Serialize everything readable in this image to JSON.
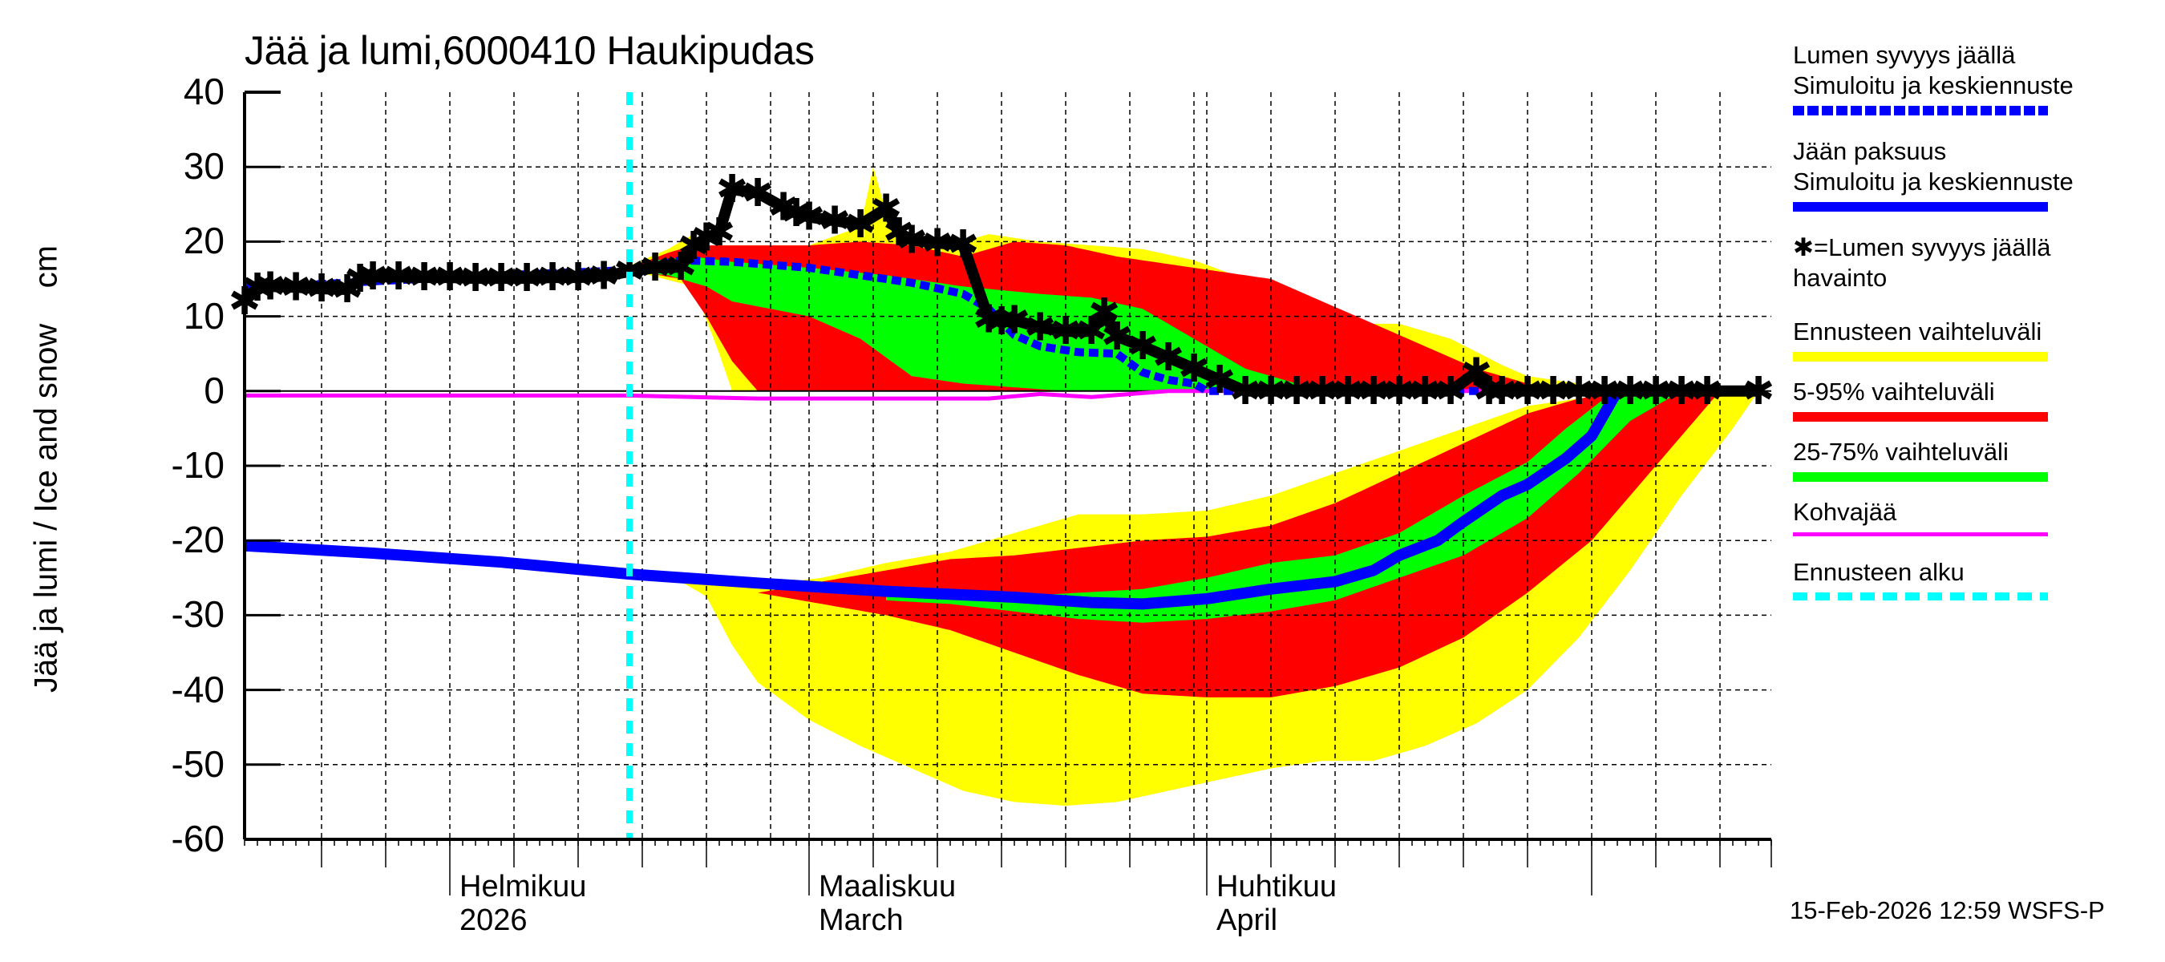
{
  "title": "Jää ja lumi,6000410 Haukipudas",
  "y_axis_label": "Jää ja lumi / Ice and snow    cm",
  "footer": "15-Feb-2026 12:59 WSFS-P",
  "x_labels": [
    {
      "line1": "Helmikuu",
      "line2": "2026",
      "date": "2026-02-01"
    },
    {
      "line1": "Maaliskuu",
      "line2": "March",
      "date": "2026-03-01"
    },
    {
      "line1": "Huhtikuu",
      "line2": "April",
      "date": "2026-04-01"
    }
  ],
  "legend": [
    {
      "line1": "Lumen syvyys jäällä",
      "line2": "Simuloitu ja keskiennuste",
      "color": "#0000ff",
      "style": "dotted-thick"
    },
    {
      "line1": "Jään paksuus",
      "line2": "Simuloitu ja keskiennuste",
      "color": "#0000ff",
      "style": "solid-thick"
    },
    {
      "line1": "✱=Lumen syvyys jäällä",
      "line2": "havainto",
      "color": "#000000",
      "style": "marker"
    },
    {
      "line1": "Ennusteen vaihteluväli",
      "color": "#ffff00",
      "style": "solid-thick"
    },
    {
      "line1": "5-95% vaihteluväli",
      "color": "#ff0000",
      "style": "solid-thick"
    },
    {
      "line1": "25-75% vaihteluväli",
      "color": "#00ff00",
      "style": "solid-thick"
    },
    {
      "line1": "Kohvajää",
      "color": "#ff00ff",
      "style": "solid-thin"
    },
    {
      "line1": "Ennusteen alku",
      "color": "#00ffff",
      "style": "dashed"
    }
  ],
  "colors": {
    "range_full": "#ffff00",
    "range_5_95": "#ff0000",
    "range_25_75": "#00ff00",
    "median": "#0000ff",
    "slush": "#ff00ff",
    "forecast_start": "#00ffff",
    "observed": "#000000"
  },
  "chart_data": {
    "type": "area",
    "title": "Jää ja lumi,6000410 Haukipudas",
    "xlabel": "",
    "ylabel": "Jää ja lumi / Ice and snow cm",
    "ylim": [
      -60,
      40
    ],
    "yticks": [
      40,
      30,
      20,
      10,
      0,
      -10,
      -20,
      -30,
      -40,
      -50,
      -60
    ],
    "x_start": "2026-01-16",
    "x_end": "2026-05-15",
    "grid": true,
    "forecast_start": "2026-02-15",
    "legend_position": "right",
    "x_days_note": "x = days since 2026-01-16 (0 = Jan 16, 16 = Feb 1, 30 = Feb 15, 44 = Mar 1, 75 = Apr 1, 105 = May 1)",
    "snow_observed": {
      "name": "Lumen syvyys jäällä havainto",
      "x": [
        0,
        1,
        2,
        4,
        6,
        8,
        9,
        10,
        12,
        14,
        16,
        18,
        20,
        22,
        24,
        26,
        28,
        30,
        32,
        34,
        35,
        36,
        37,
        38,
        40,
        42,
        43,
        44,
        46,
        48,
        50,
        51,
        52,
        54,
        56,
        58,
        59,
        60,
        62,
        64,
        66,
        67,
        68,
        70,
        72,
        74,
        76,
        78,
        80,
        82,
        84,
        86,
        88,
        90,
        92,
        94,
        96,
        97,
        98,
        100,
        102,
        104,
        106,
        108,
        110,
        112,
        114,
        118
      ],
      "y": [
        12,
        13.8,
        14,
        13.9,
        13.7,
        13.6,
        15,
        15.3,
        15.3,
        15.2,
        15.2,
        15.1,
        15.1,
        15.1,
        15.2,
        15.2,
        15.4,
        16,
        16.5,
        16.6,
        19.4,
        20.5,
        21.2,
        27,
        26.5,
        24.6,
        23.8,
        23.3,
        22.8,
        22.3,
        24.4,
        21.2,
        20.2,
        19.8,
        19.6,
        9.6,
        9.3,
        9.5,
        8.5,
        8,
        8,
        10.5,
        7.3,
        6,
        4.5,
        3,
        1.5,
        0,
        0,
        0,
        0,
        0,
        0,
        0,
        0,
        0,
        2.5,
        0,
        0,
        0,
        0,
        0,
        0,
        0,
        0,
        0,
        0,
        0
      ]
    },
    "snow_median": {
      "name": "Lumen syvyys jäällä – Simuloitu ja keskiennuste",
      "x": [
        0,
        16,
        30,
        34,
        38,
        44,
        48,
        52,
        56,
        58,
        60,
        62,
        65,
        68,
        70,
        72,
        74,
        75,
        80,
        118
      ],
      "y": [
        13.8,
        15.2,
        16.2,
        17.5,
        17.3,
        16.5,
        15.5,
        14.5,
        13,
        11,
        7.5,
        6,
        5.2,
        5,
        2.5,
        1.5,
        1,
        0,
        0,
        0
      ]
    },
    "snow_p75_upper": {
      "x": [
        30,
        32,
        35,
        38,
        44,
        50,
        56,
        62,
        66,
        70,
        74,
        78,
        82,
        85,
        90
      ],
      "y": [
        16.2,
        17.5,
        18,
        17.3,
        16.5,
        15.5,
        14,
        13,
        12.5,
        11,
        7,
        3,
        1,
        0,
        0
      ]
    },
    "snow_p25_lower": {
      "x": [
        30,
        33,
        36,
        38,
        44,
        48,
        52,
        56,
        60,
        64,
        68,
        72,
        76,
        80
      ],
      "y": [
        16,
        15.5,
        14,
        12,
        10,
        7,
        2,
        1,
        0.5,
        0,
        0,
        0,
        0,
        0
      ]
    },
    "snow_p95_upper": {
      "x": [
        30,
        33,
        35,
        38,
        44,
        48,
        52,
        56,
        60,
        64,
        68,
        72,
        76,
        80,
        84,
        88,
        92,
        96,
        100,
        104
      ],
      "y": [
        16.5,
        18.5,
        19.5,
        19.5,
        19.5,
        20,
        19.5,
        18,
        20,
        19.5,
        18,
        17,
        16,
        15,
        12,
        9,
        6,
        3,
        1,
        0
      ]
    },
    "snow_p5_lower": {
      "x": [
        30,
        34,
        36,
        38,
        40,
        44,
        48,
        52,
        56,
        60
      ],
      "y": [
        16.2,
        15,
        10,
        4,
        0,
        0,
        0,
        0,
        0,
        0
      ]
    },
    "snow_range_upper": {
      "x": [
        30,
        33,
        35,
        36,
        38,
        44,
        48,
        49,
        50,
        52,
        56,
        58,
        62,
        66,
        70,
        74,
        78,
        82,
        84,
        86,
        90,
        94,
        98,
        100,
        104,
        108
      ],
      "y": [
        16.8,
        19,
        21,
        19.5,
        19.5,
        19.5,
        22,
        30,
        24,
        20,
        20,
        21,
        20,
        19.5,
        19,
        17.5,
        15,
        11.5,
        12,
        9,
        9,
        7,
        3.5,
        2,
        1,
        0
      ]
    },
    "snow_range_lower": {
      "x": [
        30,
        35,
        37,
        38,
        40
      ],
      "y": [
        16.2,
        14,
        5,
        0,
        0
      ]
    },
    "ice_median": {
      "name": "Jään paksuus – Simuloitu ja keskiennuste",
      "x": [
        0,
        10,
        20,
        30,
        40,
        50,
        60,
        66,
        70,
        75,
        80,
        85,
        88,
        90,
        93,
        95,
        98,
        100,
        103,
        105,
        107
      ],
      "y": [
        -20.7,
        -21.7,
        -22.9,
        -24.5,
        -25.7,
        -26.8,
        -27.6,
        -28.3,
        -28.5,
        -27.8,
        -26.5,
        -25.5,
        -24,
        -22,
        -20,
        -17.5,
        -14,
        -12.5,
        -9,
        -6,
        0
      ]
    },
    "ice_p75_upper": {
      "x": [
        50,
        55,
        60,
        65,
        70,
        75,
        80,
        85,
        90,
        95,
        100,
        103,
        106,
        108
      ],
      "y": [
        -27,
        -27.2,
        -27.5,
        -27,
        -26.5,
        -25,
        -23,
        -22,
        -19,
        -14,
        -9.5,
        -5,
        -1,
        0
      ]
    },
    "ice_p25_lower": {
      "x": [
        50,
        55,
        60,
        65,
        70,
        75,
        80,
        85,
        90,
        95,
        100,
        104,
        108,
        112
      ],
      "y": [
        -28,
        -28.5,
        -29.5,
        -30.5,
        -31,
        -30.5,
        -29.5,
        -28,
        -25,
        -22,
        -17,
        -11,
        -4,
        0
      ]
    },
    "ice_p95_upper": {
      "x": [
        40,
        45,
        50,
        55,
        60,
        65,
        70,
        75,
        80,
        85,
        90,
        95,
        100,
        104,
        108
      ],
      "y": [
        -27,
        -25.5,
        -24,
        -22.5,
        -22,
        -21,
        -20,
        -19.5,
        -18,
        -15,
        -11,
        -7,
        -3,
        -1,
        0
      ]
    },
    "ice_p5_lower": {
      "x": [
        40,
        45,
        50,
        55,
        60,
        65,
        70,
        75,
        80,
        85,
        90,
        95,
        100,
        105,
        110,
        115
      ],
      "y": [
        -27,
        -28.5,
        -30,
        -32,
        -35,
        -38,
        -40.5,
        -41,
        -41,
        -39.5,
        -37,
        -33,
        -27,
        -20,
        -10,
        0
      ]
    },
    "ice_range_upper": {
      "x": [
        34,
        36,
        40,
        45,
        50,
        55,
        60,
        65,
        70,
        75,
        80,
        85,
        90,
        95,
        100,
        104,
        108
      ],
      "y": [
        -25.5,
        -24.5,
        -26,
        -25,
        -23,
        -21.5,
        -19,
        -16.5,
        -16.5,
        -16,
        -14,
        -11,
        -8,
        -5,
        -2,
        -1,
        0
      ]
    },
    "ice_range_lower": {
      "x": [
        34,
        36,
        38,
        40,
        44,
        48,
        52,
        56,
        60,
        64,
        68,
        72,
        76,
        80,
        84,
        88,
        92,
        96,
        100,
        104,
        108,
        112,
        116,
        118
      ],
      "y": [
        -25.5,
        -27.5,
        -34,
        -39,
        -44,
        -47.5,
        -50.5,
        -53.5,
        -55,
        -55.5,
        -55,
        -53.5,
        -52,
        -50.5,
        -49.5,
        -49.5,
        -47.5,
        -44.5,
        -40,
        -33,
        -24,
        -14,
        -5,
        0
      ]
    },
    "slush_ice": {
      "name": "Kohvajää",
      "x": [
        0,
        20,
        30,
        35,
        40,
        44,
        50,
        58,
        62,
        66,
        72,
        78,
        84,
        118
      ],
      "y": [
        -0.6,
        -0.6,
        -0.6,
        -0.8,
        -1.0,
        -1.0,
        -1.0,
        -1.0,
        -0.4,
        -0.8,
        0,
        0,
        0,
        0
      ]
    }
  }
}
